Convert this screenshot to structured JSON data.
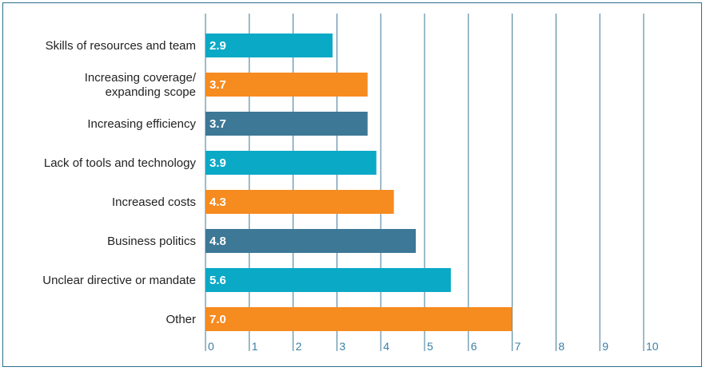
{
  "chart_data": {
    "type": "bar",
    "orientation": "horizontal",
    "categories": [
      [
        "Skills of resources and team"
      ],
      [
        "Increasing coverage/",
        "expanding scope"
      ],
      [
        "Increasing efficiency"
      ],
      [
        "Lack of tools and technology"
      ],
      [
        "Increased costs"
      ],
      [
        "Business politics"
      ],
      [
        "Unclear directive or mandate"
      ],
      [
        "Other"
      ]
    ],
    "values": [
      2.9,
      3.7,
      3.7,
      3.9,
      4.3,
      4.8,
      5.6,
      7.0
    ],
    "value_labels": [
      "2.9",
      "3.7",
      "3.7",
      "3.9",
      "4.3",
      "4.8",
      "5.6",
      "7.0"
    ],
    "bar_colors": [
      "#0aa9c6",
      "#f68b1f",
      "#3d7896",
      "#0aa9c6",
      "#f68b1f",
      "#3d7896",
      "#0aa9c6",
      "#f68b1f"
    ],
    "xlim": [
      0,
      10
    ],
    "xticks": [
      "0",
      "1",
      "2",
      "3",
      "4",
      "5",
      "6",
      "7",
      "8",
      "9",
      "10"
    ],
    "grid": "vertical",
    "gridline_color": "#3d7896",
    "tick_color": "#3b7fa6",
    "legend": "none"
  }
}
